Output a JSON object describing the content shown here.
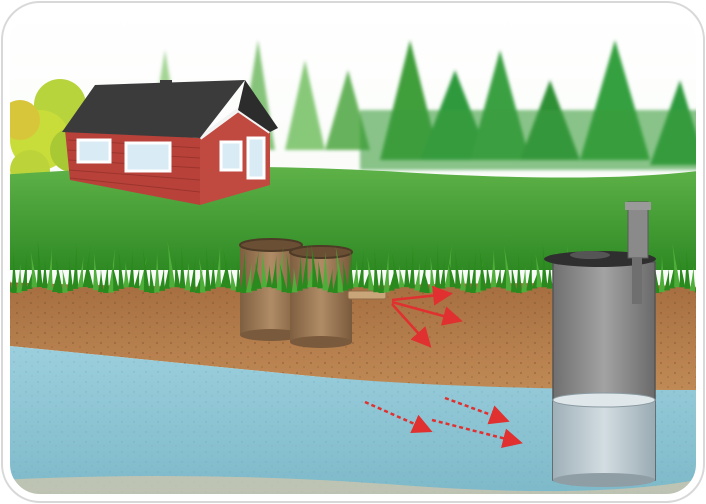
{
  "scene": {
    "labels": [],
    "colors": {
      "sky": "#ffffff",
      "tree_dark": "#2f9a3c",
      "tree_light": "#7fc46a",
      "bush": "#c8dc3a",
      "grass_field": "#3c9a2c",
      "grass_tuft": "#2a8a1e",
      "soil": "#b07a4a",
      "groundwater": "#8fc6d6",
      "house_siding": "#b8423a",
      "house_roof": "#3b3b3b",
      "house_trim": "#f3f3f3",
      "tank_concrete": "#9a7a5a",
      "well_casing": "#8a8a8a",
      "well_water": "#b9c6cc",
      "flow_arrow": "#e03030",
      "frame_border": "#ffffff"
    },
    "icons": [
      "house-icon",
      "septic-tank-icon",
      "water-well-icon",
      "flow-arrow-icon"
    ]
  }
}
